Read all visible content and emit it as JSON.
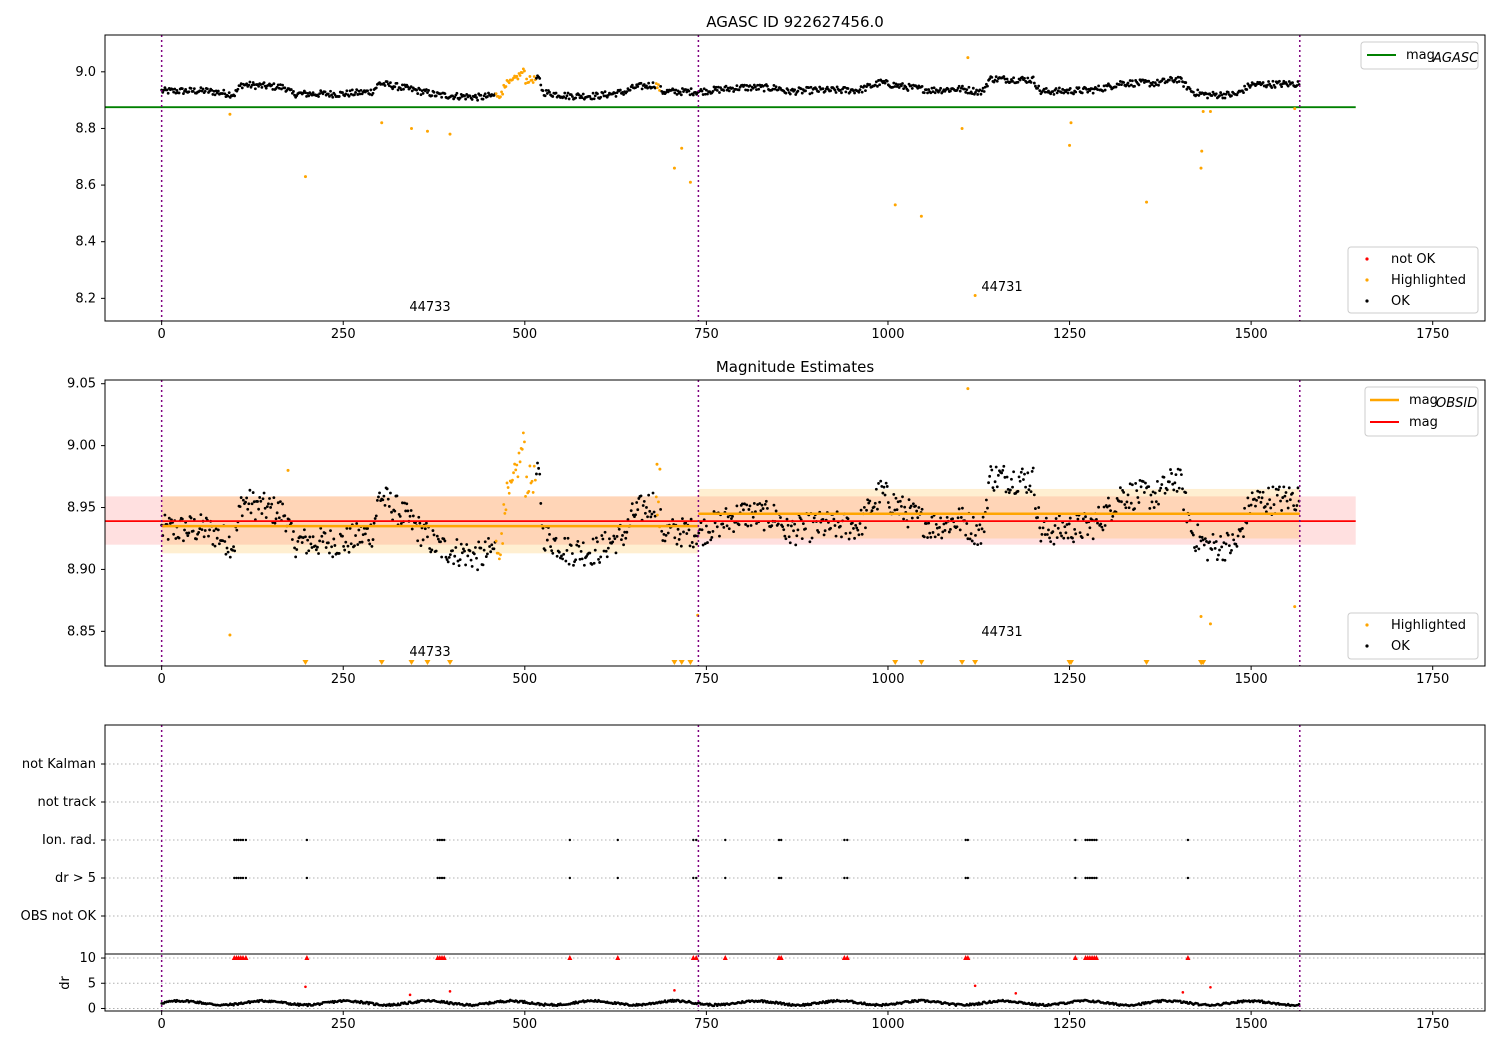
{
  "chart_data": [
    {
      "type": "scatter",
      "title": "AGASC ID 922627456.0",
      "xlim": [
        -78,
        1822
      ],
      "ylim": [
        8.12,
        9.13
      ],
      "x_ticks": [
        0,
        250,
        500,
        750,
        1000,
        1250,
        1500,
        1750
      ],
      "y_ticks": [
        8.2,
        8.4,
        8.6,
        8.8,
        9.0
      ],
      "y_tick_labels": [
        "8.2",
        "8.4",
        "8.6",
        "8.8",
        "9.0"
      ],
      "obs_boundaries": [
        0,
        739,
        1567
      ],
      "annotations": [
        {
          "text": "44733",
          "x": 370,
          "y": 8.15
        },
        {
          "text": "44731",
          "x": 1150,
          "y": 8.22
        }
      ],
      "reference_lines": [
        {
          "name": "mag_AGASC",
          "y": 8.875,
          "x_range": [
            -78,
            1644
          ],
          "color": "#008000"
        }
      ],
      "highlighted_outliers": [
        [
          94,
          8.85
        ],
        [
          198,
          8.63
        ],
        [
          303,
          8.82
        ],
        [
          344,
          8.8
        ],
        [
          366,
          8.79
        ],
        [
          397,
          8.78
        ],
        [
          706,
          8.66
        ],
        [
          716,
          8.73
        ],
        [
          728,
          8.61
        ],
        [
          1010,
          8.53
        ],
        [
          1046,
          8.49
        ],
        [
          1102,
          8.8
        ],
        [
          1110,
          9.05
        ],
        [
          1250,
          8.74
        ],
        [
          1252,
          8.82
        ],
        [
          1356,
          8.54
        ],
        [
          1431,
          8.66
        ],
        [
          1432,
          8.72
        ],
        [
          1434,
          8.86
        ],
        [
          1444,
          8.86
        ],
        [
          1560,
          8.87
        ]
      ],
      "not_ok_points": [
        [
          1120,
          8.21
        ]
      ],
      "legend_main": [
        {
          "label": "mag",
          "sub": "AGASC"
        }
      ],
      "legend_points": [
        {
          "label": "not OK",
          "color": "#ff0000"
        },
        {
          "label": "Highlighted",
          "color": "#ffa500"
        },
        {
          "label": "OK",
          "color": "#000000"
        }
      ]
    },
    {
      "type": "scatter",
      "title": "Magnitude Estimates",
      "xlim": [
        -78,
        1822
      ],
      "ylim": [
        8.822,
        9.053
      ],
      "x_ticks": [
        0,
        250,
        500,
        750,
        1000,
        1250,
        1500,
        1750
      ],
      "y_ticks": [
        8.85,
        8.9,
        8.95,
        9.0,
        9.05
      ],
      "y_tick_labels": [
        "8.85",
        "8.90",
        "8.95",
        "9.00",
        "9.05"
      ],
      "obs_boundaries": [
        0,
        739,
        1567
      ],
      "annotations": [
        {
          "text": "44733",
          "x": 370,
          "y": 8.832
        },
        {
          "text": "44731",
          "x": 1150,
          "y": 8.849
        }
      ],
      "mag_line": {
        "y": 8.939,
        "band": [
          8.92,
          8.959
        ],
        "x_range": [
          -78,
          1644
        ]
      },
      "obsid_segments": [
        {
          "x_range": [
            0,
            739
          ],
          "y": 8.935,
          "band": [
            8.913,
            8.959
          ]
        },
        {
          "x_range": [
            739,
            1567
          ],
          "y": 8.945,
          "band": [
            8.925,
            8.965
          ]
        }
      ],
      "highlighted_outliers": [
        [
          94,
          8.847
        ],
        [
          174,
          8.98
        ],
        [
          682,
          8.985
        ],
        [
          686,
          8.981
        ],
        [
          738,
          8.863
        ],
        [
          1110,
          9.046
        ],
        [
          1431,
          8.862
        ],
        [
          1444,
          8.856
        ],
        [
          1560,
          8.87
        ]
      ],
      "below_range_markers": [
        198,
        303,
        344,
        366,
        397,
        706,
        716,
        728,
        1010,
        1046,
        1102,
        1120,
        1250,
        1252,
        1356,
        1431,
        1432,
        1434
      ],
      "legend_main": [
        {
          "label": "mag",
          "sub": "OBSID",
          "color": "#ffa500"
        },
        {
          "label": "mag",
          "sub": "",
          "color": "#ff0000"
        }
      ],
      "legend_points": [
        {
          "label": "Highlighted",
          "color": "#ffa500"
        },
        {
          "label": "OK",
          "color": "#000000"
        }
      ]
    },
    {
      "type": "scatter",
      "title": "",
      "xlim": [
        -78,
        1822
      ],
      "obs_boundaries": [
        0,
        739,
        1567
      ],
      "flag_rows": [
        "not Kalman",
        "not track",
        "Ion. rad.",
        "dr > 5",
        "OBS not OK"
      ],
      "flag_times": [
        100,
        103,
        106,
        109,
        112,
        116,
        200,
        380,
        383,
        386,
        389,
        562,
        628,
        732,
        736,
        776,
        850,
        853,
        940,
        944,
        1107,
        1110,
        1258,
        1272,
        1275,
        1278,
        1281,
        1284,
        1287,
        1413
      ],
      "dr_ylim": [
        -0.5,
        10.8
      ],
      "dr_y_ticks": [
        0,
        5,
        10
      ],
      "dr_label": "dr",
      "dr_outliers": [
        [
          198,
          4.3
        ],
        [
          342,
          2.7
        ],
        [
          397,
          3.4
        ],
        [
          706,
          3.6
        ],
        [
          1120,
          4.5
        ],
        [
          1176,
          3.0
        ],
        [
          1406,
          3.2
        ],
        [
          1444,
          4.2
        ]
      ]
    }
  ],
  "x_tick_labels": [
    "0",
    "250",
    "500",
    "750",
    "1000",
    "1250",
    "1500",
    "1750"
  ],
  "dr_tick_labels": [
    "0",
    "5",
    "10"
  ],
  "colors": {
    "ok": "#000000",
    "highlighted": "#ffa500",
    "not_ok": "#ff0000",
    "agasc": "#008000",
    "mag": "#ff0000",
    "obsid": "#ffa500",
    "boundary": "#800080"
  }
}
